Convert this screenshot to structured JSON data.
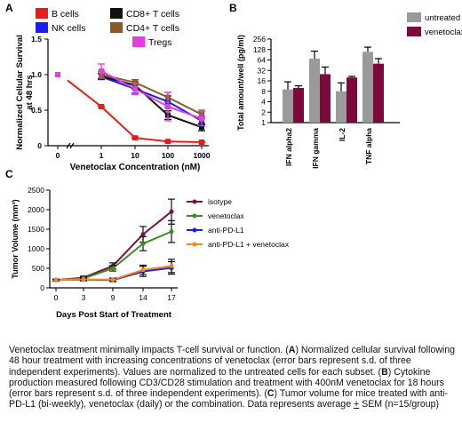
{
  "panels": {
    "A": "A",
    "B": "B",
    "C": "C"
  },
  "colors": {
    "b_cells": "#e0201b",
    "nk_cells": "#1a1ee8",
    "cd8": "#111111",
    "cd4": "#8b5a2b",
    "tregs": "#e040e0",
    "untreated": "#9a9a9a",
    "venetoclax_bar": "#7b0a3a",
    "isotype": "#7b1140",
    "venetoclax_line": "#3d8a28",
    "anti_pdl1": "#1a1ee8",
    "combo": "#f08a20"
  },
  "chart_data": [
    {
      "panel": "A",
      "type": "line",
      "xscale": "log",
      "x": [
        0.1,
        1,
        10,
        100,
        1000
      ],
      "x_tick_labels": [
        "0",
        "1",
        "10",
        "100",
        "1000"
      ],
      "xlabel": "Venetoclax Concentration (nM)",
      "ylabel": "Normalized Cellular Survival at 48 hrs",
      "ylim": [
        0,
        1.5
      ],
      "y_ticks": [
        0,
        0.5,
        1.0,
        1.5
      ],
      "y_tick_labels": [
        "0",
        "0.5",
        "1.0",
        "1.5"
      ],
      "legend": "top-left",
      "series": [
        {
          "name": "B cells",
          "color_key": "b_cells",
          "values": [
            1.0,
            0.55,
            0.11,
            0.06,
            0.05
          ],
          "err": [
            0,
            0.01,
            0.01,
            0.01,
            0.01
          ],
          "marker": "square"
        },
        {
          "name": "NK cells",
          "color_key": "nk_cells",
          "values": [
            1.0,
            0.97,
            0.8,
            0.62,
            0.35
          ],
          "err": [
            0,
            0.04,
            0.06,
            0.08,
            0.06
          ],
          "marker": "square"
        },
        {
          "name": "CD8+ T cells",
          "color_key": "cd8",
          "values": [
            1.0,
            0.98,
            0.85,
            0.43,
            0.26
          ],
          "err": [
            0,
            0.04,
            0.05,
            0.06,
            0.05
          ],
          "marker": "square"
        },
        {
          "name": "CD4+ T cells",
          "color_key": "cd4",
          "values": [
            1.0,
            1.0,
            0.89,
            0.68,
            0.44
          ],
          "err": [
            0,
            0.05,
            0.04,
            0.07,
            0.06
          ],
          "marker": "square"
        },
        {
          "name": "Tregs",
          "color_key": "tregs",
          "values": [
            1.0,
            1.05,
            0.8,
            0.55,
            0.38
          ],
          "err": [
            0,
            0.1,
            0.08,
            0.2,
            0.1
          ],
          "marker": "square"
        }
      ]
    },
    {
      "panel": "B",
      "type": "bar",
      "yscale": "log2",
      "categories": [
        "IFN alpha2",
        "IFN gamma",
        "IL-2",
        "TNF alpha"
      ],
      "ylabel": "Total amount/well (pg/ml)",
      "y_ticks": [
        1,
        2,
        4,
        8,
        16,
        32,
        64,
        128,
        256
      ],
      "y_tick_labels": [
        "1",
        "2",
        "4",
        "8",
        "16",
        "32",
        "64",
        "128",
        "256"
      ],
      "legend": "top-right",
      "series": [
        {
          "name": "untreated",
          "color_key": "untreated",
          "values": [
            9,
            70,
            8,
            110
          ],
          "err": [
            6,
            45,
            6,
            40
          ]
        },
        {
          "name": "venetoclax",
          "color_key": "venetoclax_bar",
          "values": [
            10,
            25,
            20,
            50
          ],
          "err": [
            1.5,
            15,
            1.5,
            20
          ]
        }
      ]
    },
    {
      "panel": "C",
      "type": "line",
      "x": [
        0,
        3,
        9,
        14,
        17
      ],
      "x_tick_labels": [
        "0",
        "3",
        "9",
        "14",
        "17"
      ],
      "xlabel": "Days Post Start of Treatment",
      "ylabel": "Tumor Volume (mm³)",
      "ylim": [
        0,
        2500
      ],
      "y_ticks": [
        0,
        500,
        1000,
        1500,
        2000,
        2500
      ],
      "y_tick_labels": [
        "0",
        "500",
        "1000",
        "1500",
        "2000",
        "2500"
      ],
      "legend": "right",
      "series": [
        {
          "name": "isotype",
          "color_key": "isotype",
          "values": [
            200,
            260,
            560,
            1370,
            1950
          ],
          "err": [
            20,
            40,
            80,
            200,
            320
          ]
        },
        {
          "name": "venetoclax",
          "color_key": "venetoclax_line",
          "values": [
            200,
            240,
            500,
            1130,
            1440
          ],
          "err": [
            20,
            35,
            70,
            180,
            280
          ]
        },
        {
          "name": "anti-PD-L1",
          "color_key": "anti_pdl1",
          "values": [
            200,
            210,
            200,
            420,
            510
          ],
          "err": [
            20,
            30,
            40,
            130,
            160
          ]
        },
        {
          "name": "anti-PD-L1 + venetoclax",
          "color_key": "combo",
          "values": [
            200,
            215,
            210,
            460,
            560
          ],
          "err": [
            20,
            30,
            40,
            120,
            170
          ]
        }
      ]
    }
  ],
  "caption": {
    "p1": "Venetoclax treatment minimally impacts T-cell survival or function. (",
    "a": "A",
    "p2": ") Normalized cellular survival following 48 hour treatment with increasing concentrations of venetoclax (error bars represent s.d. of three independent experiments). Values are normalized to the untreated cells for each subset. (",
    "b": "B",
    "p3": ") Cytokine production measured following CD3/CD28 stimulation and treatment with 400nM venetoclax for 18 hours (error bars represent s.d. of three independent experiments). (",
    "c": "C",
    "p4": ") Tumor volume for mice treated with anti-PD-L1 (bi-weekly), venetoclax (daily) or the combination. Data represents average ",
    "pm": "+",
    "p5": " SEM (n=15/group)"
  }
}
